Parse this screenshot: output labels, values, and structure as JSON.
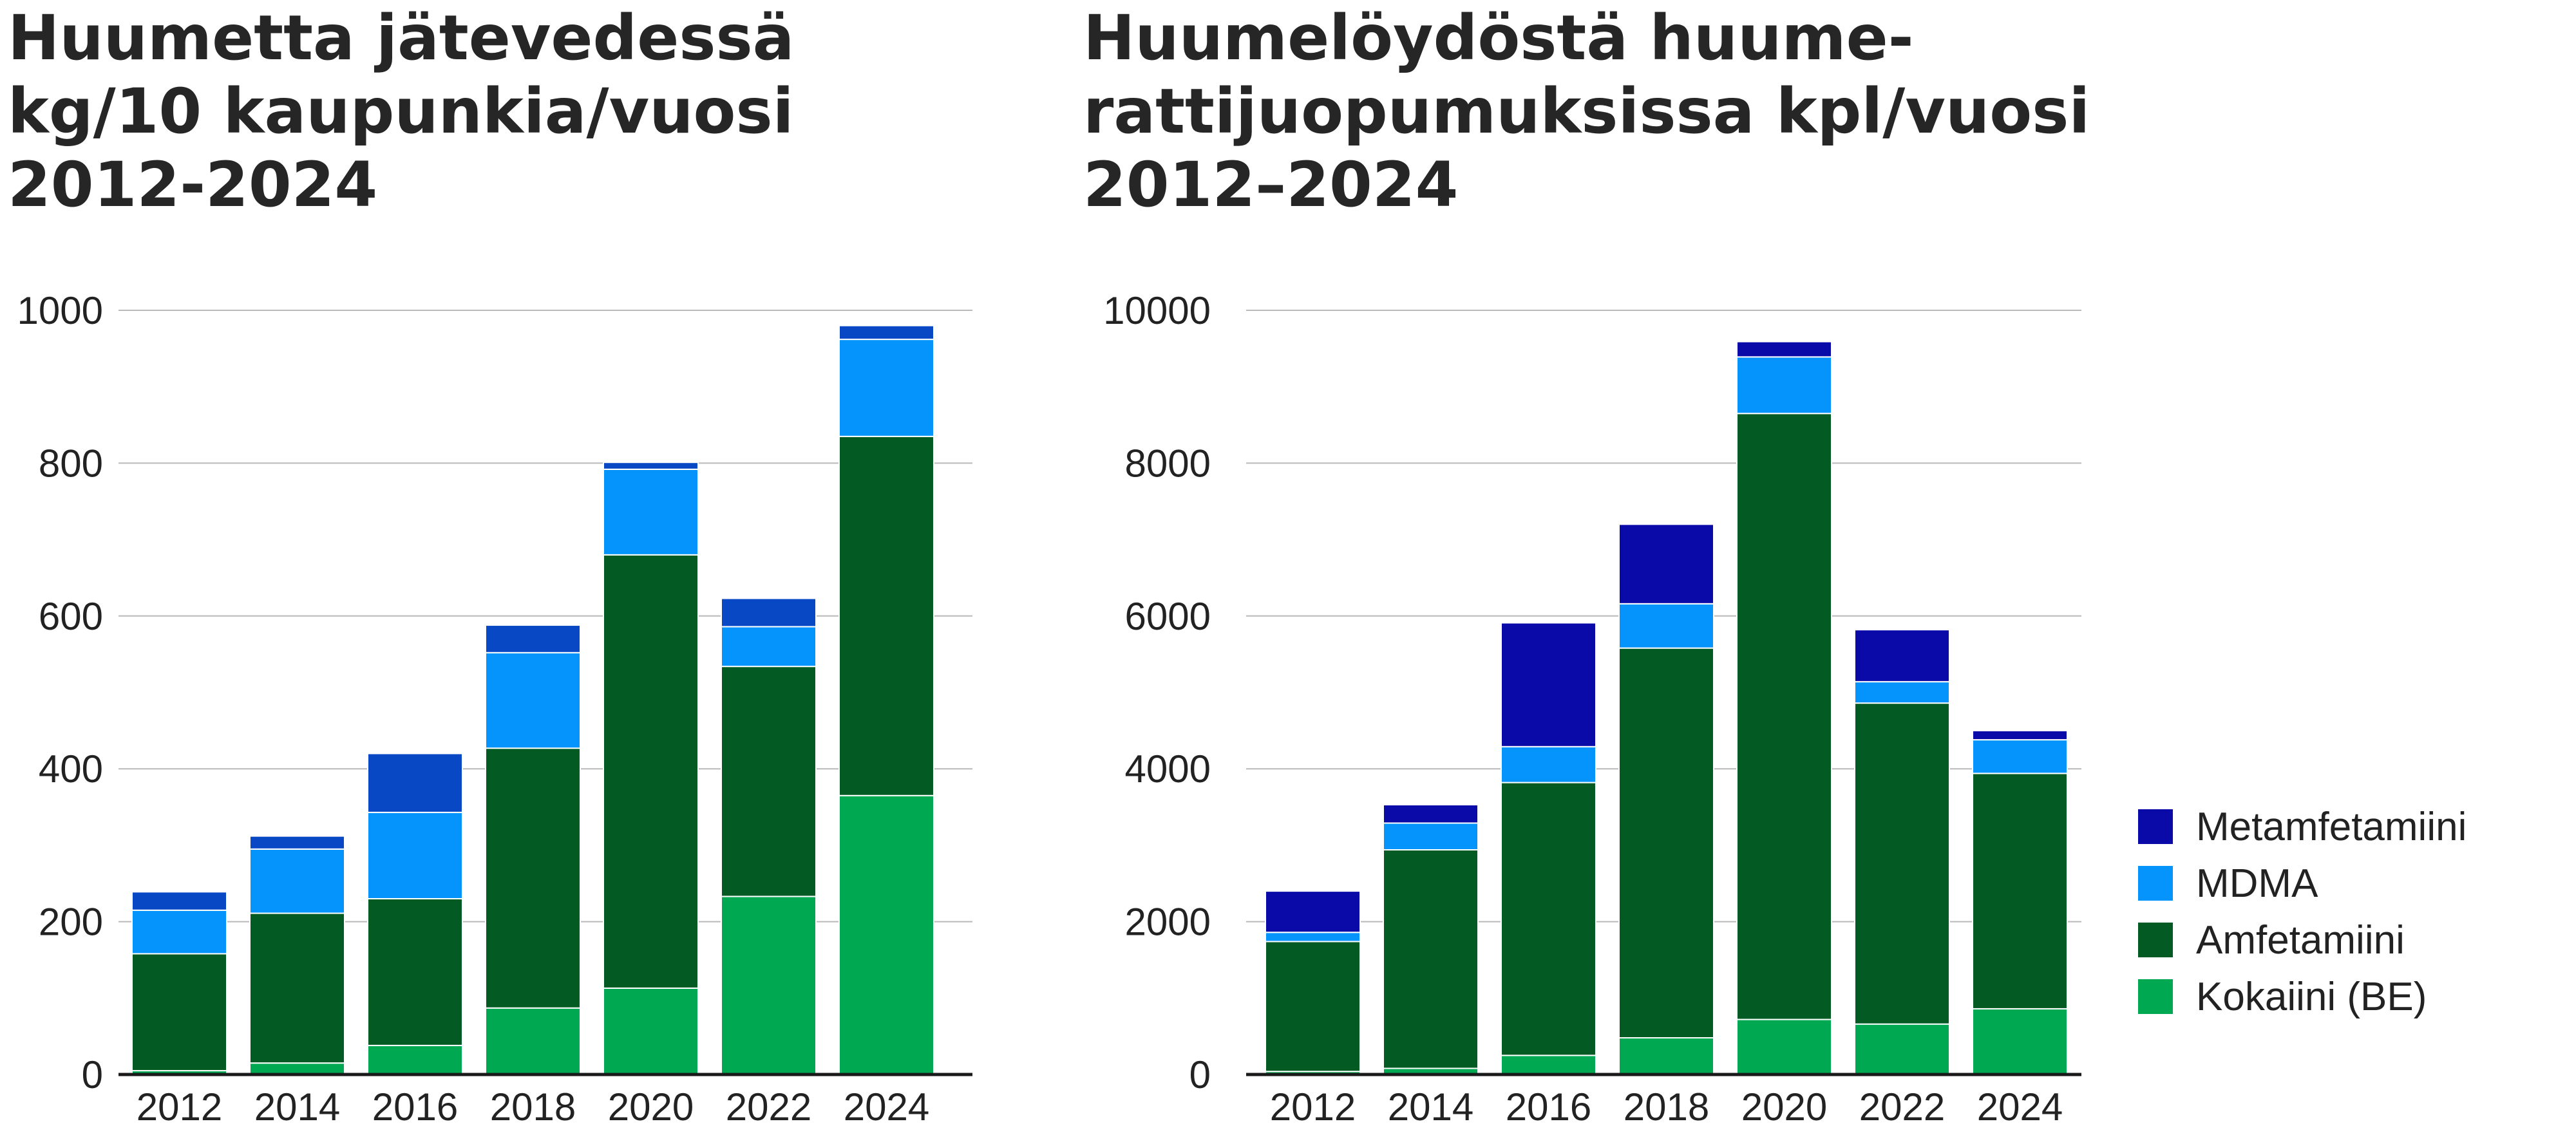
{
  "colors": {
    "Metamfetamiini": "#0a0aa8",
    "MDMA": "#0594fb",
    "Amfetamiini": "#035a23",
    "Kokaiini (BE)": "#00a951",
    "Metamfetamiini_left": "#0848c4"
  },
  "legend": {
    "items": [
      {
        "label": "Metamfetamiini",
        "color": "#0a0aa8"
      },
      {
        "label": "MDMA",
        "color": "#0594fb"
      },
      {
        "label": "Amfetamiini",
        "color": "#035a23"
      },
      {
        "label": "Kokaiini (BE)",
        "color": "#00a951"
      }
    ]
  },
  "chart_data": [
    {
      "type": "bar",
      "stacked": true,
      "title_lines": [
        "Huumetta jätevedessä",
        "kg/10 kaupunkia/vuosi",
        "2012-2024"
      ],
      "categories": [
        "2012",
        "2014",
        "2016",
        "2018",
        "2020",
        "2022",
        "2024"
      ],
      "ylim": [
        0,
        1000
      ],
      "yticks": [
        0,
        200,
        400,
        600,
        800,
        1000
      ],
      "grid": true,
      "legend": "none",
      "series": [
        {
          "name": "Kokaiini (BE)",
          "values": [
            5,
            15,
            38,
            87,
            113,
            233,
            365
          ]
        },
        {
          "name": "Amfetamiini",
          "values": [
            153,
            196,
            192,
            340,
            567,
            301,
            470
          ]
        },
        {
          "name": "MDMA",
          "values": [
            57,
            84,
            113,
            125,
            112,
            52,
            127
          ]
        },
        {
          "name": "Metamfetamiini",
          "values": [
            24,
            17,
            77,
            36,
            9,
            37,
            18
          ]
        }
      ]
    },
    {
      "type": "bar",
      "stacked": true,
      "title_lines": [
        "Huumelöydöstä huume-",
        "rattijuopumuksissa kpl/vuosi",
        "2012–2024"
      ],
      "categories": [
        "2012",
        "2014",
        "2016",
        "2018",
        "2020",
        "2022",
        "2024"
      ],
      "ylim": [
        0,
        10000
      ],
      "yticks": [
        0,
        2000,
        4000,
        6000,
        8000,
        10000
      ],
      "grid": true,
      "legend": "right",
      "series": [
        {
          "name": "Kokaiini (BE)",
          "values": [
            40,
            80,
            250,
            480,
            720,
            660,
            860
          ]
        },
        {
          "name": "Amfetamiini",
          "values": [
            1700,
            2860,
            3570,
            5100,
            7930,
            4200,
            3080
          ]
        },
        {
          "name": "MDMA",
          "values": [
            120,
            350,
            470,
            580,
            740,
            280,
            440
          ]
        },
        {
          "name": "Metamfetamiini",
          "values": [
            540,
            240,
            1620,
            1040,
            200,
            680,
            120
          ]
        }
      ]
    }
  ]
}
